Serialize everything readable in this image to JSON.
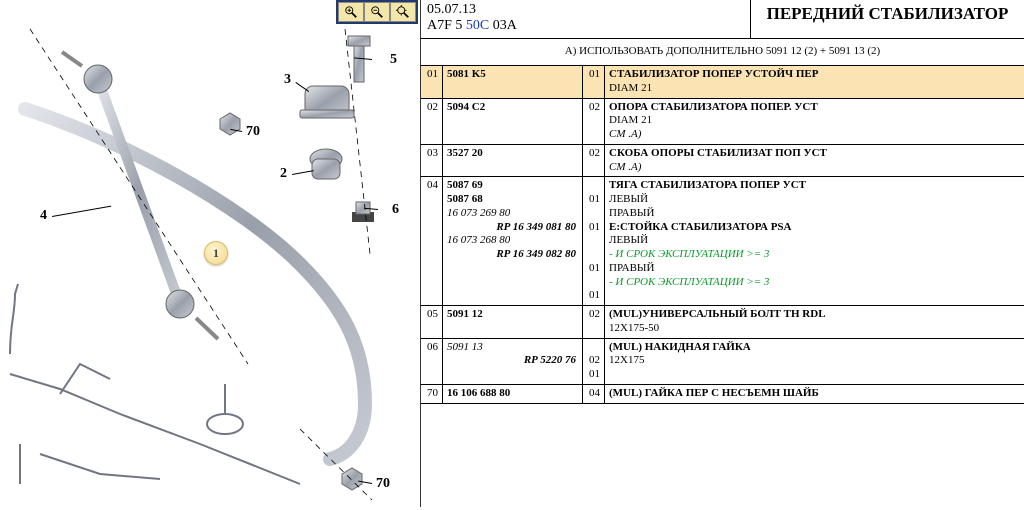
{
  "header": {
    "date": "05.07.13",
    "code_prefix": "A7F 5 ",
    "code_blue": "50C",
    "code_suffix": " 03A",
    "title": "ПЕРЕДНИЙ СТАБИЛИЗАТОР",
    "note": "А) ИСПОЛЬЗОВАТЬ ДОПОЛНИТЕЛЬНО 5091 12 (2) + 5091 13 (2)"
  },
  "diagram": {
    "badge1_label": "1",
    "callouts": {
      "n2": "2",
      "n3": "3",
      "n4": "4",
      "n5": "5",
      "n6": "6",
      "n70a": "70",
      "n70b": "70"
    }
  },
  "rows": [
    {
      "idx": "01",
      "hl": true,
      "ref_lines": [
        {
          "t": "5081 K5",
          "cls": "bold"
        }
      ],
      "qty": "01",
      "desc_lines": [
        {
          "t": "СТАБИЛИЗАТОР ПОПЕР УСТОЙЧ ПЕР",
          "cls": "bold"
        },
        {
          "t": "DIAM 21"
        }
      ]
    },
    {
      "idx": "02",
      "ref_lines": [
        {
          "t": "5094 C2",
          "cls": "bold"
        }
      ],
      "qty": "02",
      "desc_lines": [
        {
          "t": "ОПОРА СТАБИЛИЗАТОРА ПОПЕР. УСТ",
          "cls": "bold"
        },
        {
          "t": "DIAM 21"
        },
        {
          "t": "СМ .А)",
          "cls": "ital"
        }
      ]
    },
    {
      "idx": "03",
      "ref_lines": [
        {
          "t": "3527 20",
          "cls": "bold"
        }
      ],
      "qty": "02",
      "desc_lines": [
        {
          "t": "СКОБА ОПОРЫ СТАБИЛИЗАТ ПОП УСТ",
          "cls": "bold"
        },
        {
          "t": "СМ .А)",
          "cls": "ital"
        }
      ]
    },
    {
      "idx": "04",
      "ref_lines": [
        {
          "t": "5087 69",
          "cls": "bold"
        },
        {
          "t": " "
        },
        {
          "t": "5087 68",
          "cls": "bold"
        },
        {
          "t": " "
        },
        {
          "t": " "
        },
        {
          "t": "16 073 269 80",
          "cls": "ital"
        },
        {
          "t": "RP 16 349 081 80",
          "cls": "rp"
        },
        {
          "t": "16 073 268 80",
          "cls": "ital"
        },
        {
          "t": "RP 16 349 082 80",
          "cls": "rp"
        }
      ],
      "qty_lines": [
        "",
        "01",
        "",
        "01",
        "",
        "",
        "01",
        "",
        "01"
      ],
      "desc_lines": [
        {
          "t": "ТЯГА СТАБИЛИЗАТОРА ПОПЕР УСТ",
          "cls": "bold"
        },
        {
          "t": "ЛЕВЫЙ"
        },
        {
          "t": " "
        },
        {
          "t": "ПРАВЫЙ"
        },
        {
          "t": " "
        },
        {
          "t": "Е:СТОЙКА СТАБИЛИЗАТОРА PSA",
          "cls": "bold"
        },
        {
          "t": "ЛЕВЫЙ"
        },
        {
          "t": "- И СРОК ЭКСПЛУАТАЦИИ >= 3",
          "cls": "green"
        },
        {
          "t": "ПРАВЫЙ"
        },
        {
          "t": "- И СРОК ЭКСПЛУАТАЦИИ >= 3",
          "cls": "green"
        }
      ]
    },
    {
      "idx": "05",
      "ref_lines": [
        {
          "t": "5091 12",
          "cls": "bold"
        }
      ],
      "qty": "02",
      "desc_lines": [
        {
          "t": "(MUL)УНИВЕРСАЛЬНЫЙ БОЛТ TH RDL",
          "cls": "bold"
        },
        {
          "t": "12X175-50"
        }
      ]
    },
    {
      "idx": "06",
      "ref_lines": [
        {
          "t": "5091 13",
          "cls": "ital"
        },
        {
          "t": "RP 5220 76",
          "cls": "rp"
        }
      ],
      "qty_lines": [
        "",
        "02",
        "01"
      ],
      "desc_lines": [
        {
          "t": "(MUL) НАКИДНАЯ ГАЙКА",
          "cls": "bold"
        },
        {
          "t": "12X175"
        }
      ]
    },
    {
      "idx": "70",
      "ref_lines": [
        {
          "t": "16 106 688 80",
          "cls": "bold"
        }
      ],
      "qty": "04",
      "desc_lines": [
        {
          "t": "(MUL) ГАЙКА ПЕР С НЕСЪЕМН ШАЙБ",
          "cls": "bold"
        }
      ]
    }
  ]
}
